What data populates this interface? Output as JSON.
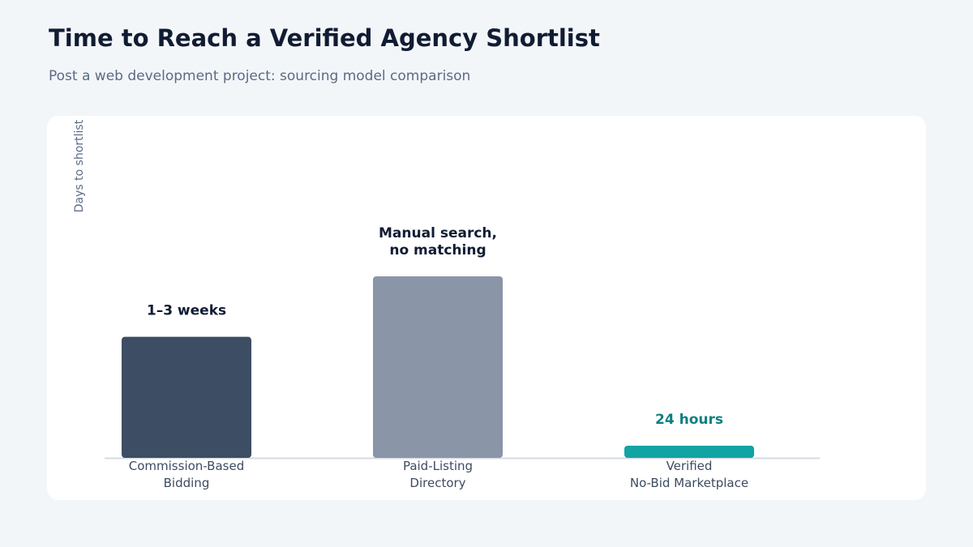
{
  "title": "Time to Reach a Verified Agency Shortlist",
  "subtitle": "Post a web development project: sourcing model comparison",
  "chart_data": {
    "type": "bar",
    "ylabel": "Days to shortlist",
    "xlabel": "",
    "ylim": [
      0,
      30
    ],
    "grid": false,
    "categories": [
      [
        "Commission-Based",
        "Bidding"
      ],
      [
        "Paid-Listing",
        "Directory"
      ],
      [
        "Verified",
        "No-Bid Marketplace"
      ]
    ],
    "values": [
      14,
      21,
      1
    ],
    "data_labels": [
      [
        "1–3 weeks"
      ],
      [
        "Manual search,",
        "no matching"
      ],
      [
        "24 hours"
      ]
    ],
    "colors": [
      "#3d4d63",
      "#8a95a7",
      "#12a3a3"
    ],
    "label_colors": [
      "#111c33",
      "#111c33",
      "#0f7f7f"
    ]
  }
}
